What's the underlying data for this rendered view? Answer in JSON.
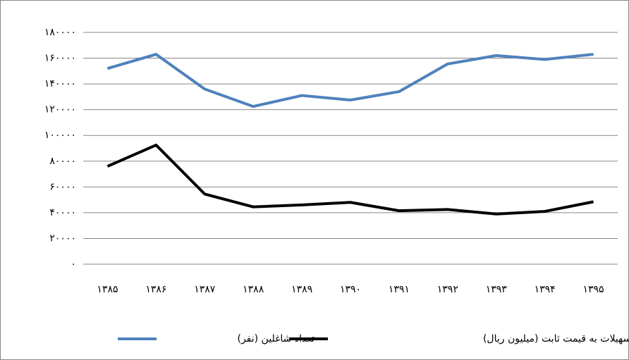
{
  "chart_data": {
    "type": "line",
    "categories": [
      "۱۳۸۵",
      "۱۳۸۶",
      "۱۳۸۷",
      "۱۳۸۸",
      "۱۳۸۹",
      "۱۳۹۰",
      "۱۳۹۱",
      "۱۳۹۲",
      "۱۳۹۳",
      "۱۳۹۴",
      "۱۳۹۵"
    ],
    "series": [
      {
        "name": "تعداد شاغلین (نفر)",
        "color": "#4f81bd",
        "values": [
          152000,
          163000,
          136000,
          122500,
          131000,
          127500,
          134000,
          155500,
          162000,
          159000,
          163000
        ]
      },
      {
        "name": "تسهیلات به قیمت ثابت (میلیون ریال)",
        "color": "#000000",
        "values": [
          76000,
          92500,
          54500,
          44500,
          46000,
          48000,
          41500,
          42500,
          39000,
          41000,
          48500
        ]
      }
    ],
    "ylim": [
      0,
      180000
    ],
    "yticks": [
      {
        "value": 0,
        "label": "۰"
      },
      {
        "value": 20000,
        "label": "۲۰۰۰۰"
      },
      {
        "value": 40000,
        "label": "۴۰۰۰۰"
      },
      {
        "value": 60000,
        "label": "۶۰۰۰۰"
      },
      {
        "value": 80000,
        "label": "۸۰۰۰۰"
      },
      {
        "value": 100000,
        "label": "۱۰۰۰۰۰"
      },
      {
        "value": 120000,
        "label": "۱۲۰۰۰۰"
      },
      {
        "value": 140000,
        "label": "۱۴۰۰۰۰"
      },
      {
        "value": 160000,
        "label": "۱۶۰۰۰۰"
      },
      {
        "value": 180000,
        "label": "۱۸۰۰۰۰"
      }
    ],
    "grid": true,
    "legend": "bottom"
  }
}
